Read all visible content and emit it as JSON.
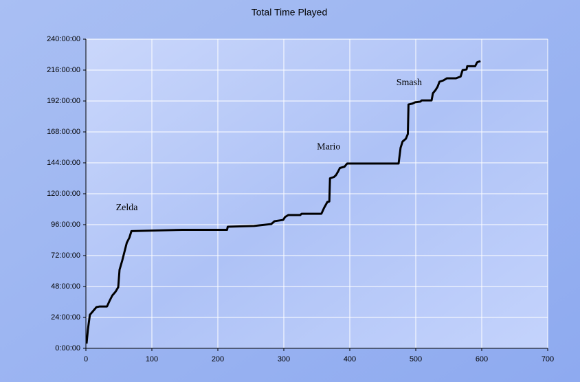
{
  "chart_data": {
    "type": "line",
    "title": "Total Time Played",
    "x": [
      1,
      3,
      6,
      11,
      16,
      21,
      32,
      36,
      40,
      45,
      49,
      51,
      55,
      58,
      62,
      66,
      69,
      146,
      214,
      215,
      255,
      281,
      286,
      299,
      302,
      307,
      325,
      327,
      357,
      361,
      366,
      369,
      370,
      376,
      379,
      382,
      385,
      392,
      396,
      474,
      477,
      480,
      485,
      488,
      489,
      495,
      499,
      507,
      509,
      524,
      526,
      530,
      533,
      536,
      542,
      547,
      561,
      568,
      571,
      577,
      578,
      590,
      593,
      598
    ],
    "series": [
      {
        "color": "#000000",
        "values": [
          3.7,
          14.4,
          26,
          29,
          32,
          32.5,
          32.5,
          37,
          41,
          44,
          47.5,
          61,
          68,
          74,
          82,
          86,
          91,
          92,
          92,
          94.4,
          95,
          96.5,
          98.7,
          99.7,
          102,
          103.5,
          103.5,
          104.5,
          104.5,
          109,
          113.6,
          114,
          132,
          133,
          134.4,
          137,
          140,
          141,
          143.5,
          143.5,
          155.7,
          160.5,
          162.7,
          166.4,
          189.3,
          190,
          191,
          191.5,
          192.5,
          192.5,
          198,
          200.5,
          203,
          207,
          208,
          209.6,
          209.6,
          211,
          216,
          216.5,
          219,
          219,
          222,
          223
        ]
      }
    ],
    "xlim": [
      0,
      700
    ],
    "xticks": [
      0,
      100,
      200,
      300,
      400,
      500,
      600,
      700
    ],
    "ylim": [
      0,
      240
    ],
    "yticks": [
      {
        "value": 0,
        "label": "0:00:00"
      },
      {
        "value": 24,
        "label": "24:00:00"
      },
      {
        "value": 48,
        "label": "48:00:00"
      },
      {
        "value": 72,
        "label": "72:00:00"
      },
      {
        "value": 96,
        "label": "96:00:00"
      },
      {
        "value": 120,
        "label": "120:00:00"
      },
      {
        "value": 144,
        "label": "144:00:00"
      },
      {
        "value": 168,
        "label": "168:00:00"
      },
      {
        "value": 192,
        "label": "192:00:00"
      },
      {
        "value": 216,
        "label": "216:00:00"
      },
      {
        "value": 240,
        "label": "240:00:00"
      }
    ],
    "grid": true,
    "annotations": [
      {
        "text": "Zelda",
        "x": 62,
        "y": 109
      },
      {
        "text": "Mario",
        "x": 368,
        "y": 156
      },
      {
        "text": "Smash",
        "x": 490,
        "y": 206
      }
    ]
  }
}
